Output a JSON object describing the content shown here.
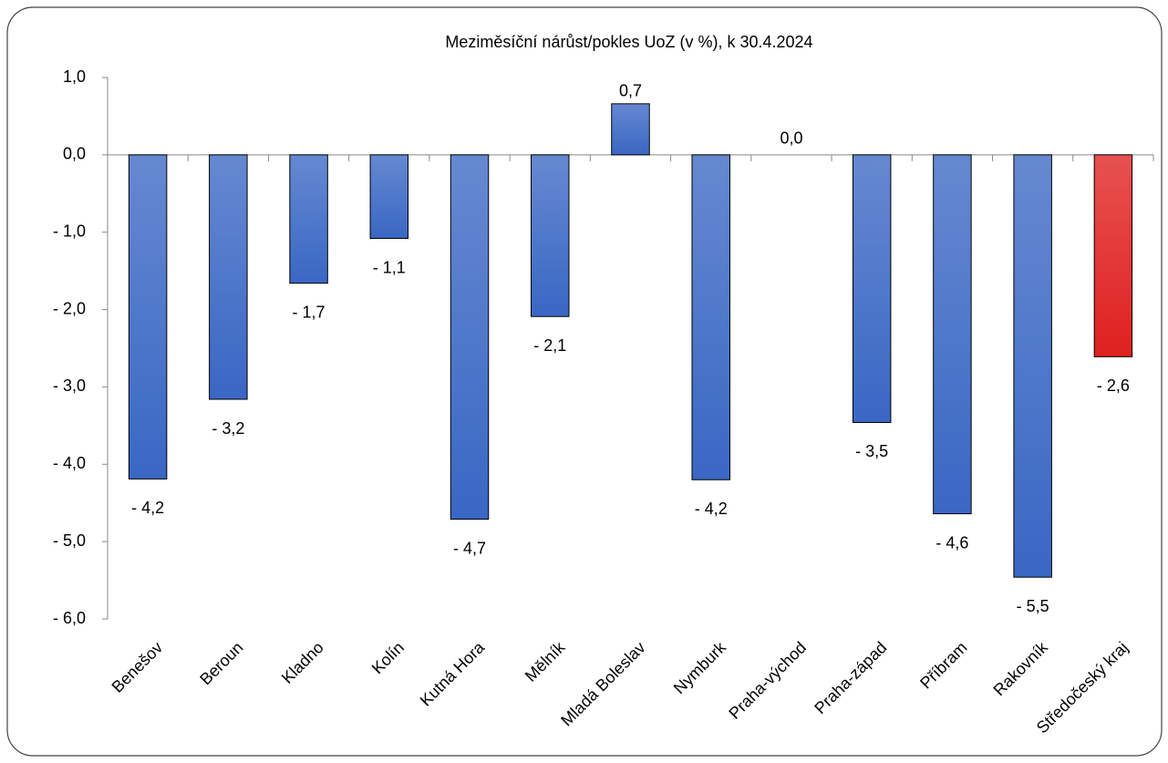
{
  "chart_data": {
    "type": "bar",
    "title": "Meziměsíční nárůst/pokles UoZ (v %), k 30.4.2024",
    "categories": [
      "Benešov",
      "Beroun",
      "Kladno",
      "Kolín",
      "Kutná Hora",
      "Mělník",
      "Mladá Boleslav",
      "Nymburk",
      "Praha-východ",
      "Praha-západ",
      "Příbram",
      "Rakovník",
      "Středočeský kraj"
    ],
    "values": [
      -4.19,
      -3.16,
      -1.66,
      -1.08,
      -4.71,
      -2.09,
      0.66,
      -4.2,
      0,
      -3.46,
      -4.64,
      -5.46,
      -2.61
    ],
    "value_labels": [
      "- 4,2",
      "- 3,2",
      "- 1,7",
      "- 1,1",
      "- 4,7",
      "- 2,1",
      "0,7",
      "- 4,2",
      "0,0",
      "- 3,5",
      "- 4,6",
      "- 5,5",
      "- 2,6"
    ],
    "colors": [
      "#3a67c4",
      "#3a67c4",
      "#3a67c4",
      "#3a67c4",
      "#3a67c4",
      "#3a67c4",
      "#3a67c4",
      "#3a67c4",
      "#3a67c4",
      "#3a67c4",
      "#3a67c4",
      "#3a67c4",
      "#e02020"
    ],
    "ylim": [
      -6,
      1
    ],
    "yticks": [
      {
        "value": -6,
        "label": "- 6,0"
      },
      {
        "value": -5,
        "label": "- 5,0"
      },
      {
        "value": -4,
        "label": "- 4,0"
      },
      {
        "value": -3,
        "label": "- 3,0"
      },
      {
        "value": -2,
        "label": "- 2,0"
      },
      {
        "value": -1,
        "label": "- 1,0"
      },
      {
        "value": 0,
        "label": "0,0"
      },
      {
        "value": 1,
        "label": "1,0"
      }
    ],
    "grid": false
  }
}
